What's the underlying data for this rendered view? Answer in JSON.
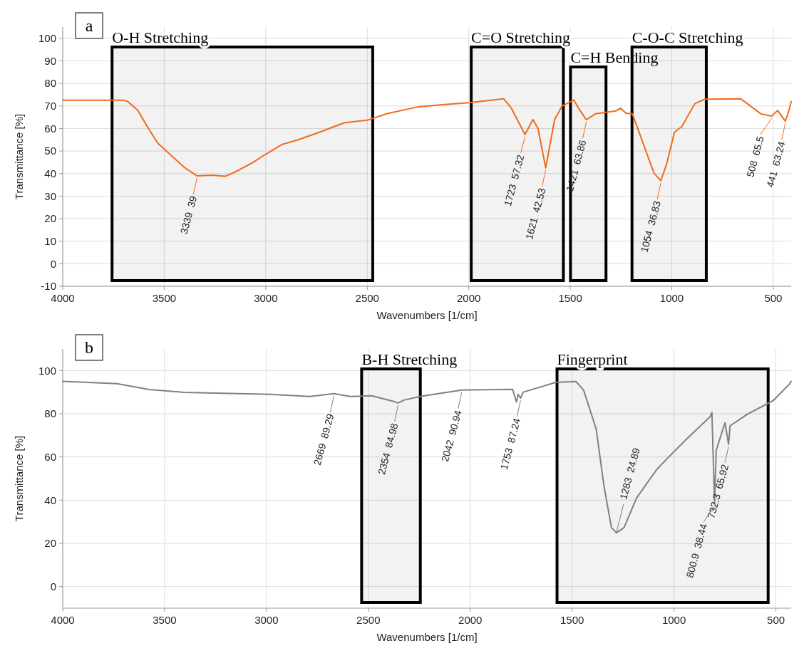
{
  "chart_data": [
    {
      "type": "line",
      "xlabel": "Wavenumbers [1/cm]",
      "ylabel": "Transmittance [%]",
      "xlim": [
        4000,
        412
      ],
      "ylim": [
        -10,
        105
      ],
      "xticks": [
        4000,
        3500,
        3000,
        2500,
        2000,
        1500,
        1000,
        500
      ],
      "yticks": [
        -10,
        0,
        10,
        20,
        30,
        40,
        50,
        60,
        70,
        80,
        90,
        100
      ],
      "grid": true,
      "line_style": "solid",
      "marker": "none",
      "series": [
        {
          "color": "#f26a1b",
          "x": [
            4000,
            3700,
            3680,
            3630,
            3585,
            3532,
            3465,
            3399,
            3339,
            3266,
            3199,
            3133,
            3066,
            3000,
            2920,
            2840,
            2734,
            2614,
            2495,
            2402,
            2255,
            2129,
            2000,
            1828,
            1790,
            1723,
            1684,
            1659,
            1621,
            1577,
            1540,
            1483,
            1452,
            1421,
            1376,
            1276,
            1251,
            1226,
            1194,
            1138,
            1088,
            1054,
            1025,
            987,
            950,
            887,
            837,
            661,
            561,
            508,
            479,
            441,
            423,
            412
          ],
          "values": [
            72.5,
            72.5,
            72,
            68,
            61.1,
            53.5,
            48,
            42.6,
            39,
            39.3,
            38.8,
            41.5,
            44.8,
            48.6,
            52.9,
            55,
            58.4,
            62.5,
            63.8,
            66.6,
            69.5,
            70.6,
            71.4,
            73.2,
            69,
            57.32,
            64,
            60,
            42.53,
            64,
            70,
            72.6,
            68,
            63.86,
            66.5,
            67.8,
            69,
            66.8,
            66.5,
            52.6,
            40.3,
            36.83,
            44.4,
            58.3,
            60.9,
            71,
            73,
            73.2,
            66.5,
            65.5,
            68,
            63.24,
            68,
            72
          ]
        }
      ],
      "bands": [
        {
          "axis": "x",
          "from": 3757,
          "to": 2473,
          "label": "O-H Stretching",
          "color": "#000000"
        },
        {
          "axis": "x",
          "from": 1988,
          "to": 1534,
          "label": "C=O Stretching",
          "color": "#000000"
        },
        {
          "axis": "x",
          "from": 1499,
          "to": 1324,
          "label": "C=H Bending",
          "color": "#000000"
        },
        {
          "axis": "x",
          "from": 1196,
          "to": 830,
          "label": "C-O-C Stretching",
          "color": "#000000"
        }
      ],
      "annotations": [
        "a",
        {
          "text": "3339  39",
          "x": 3339,
          "y": 39
        },
        {
          "text": "1723  57.32",
          "x": 1723,
          "y": 57.32
        },
        {
          "text": "1621  42.53",
          "x": 1621,
          "y": 42.53
        },
        {
          "text": "1421  63.86",
          "x": 1421,
          "y": 63.86
        },
        {
          "text": "1054  36.83",
          "x": 1054,
          "y": 36.83
        },
        {
          "text": "508  65.5",
          "x": 508,
          "y": 65.5
        },
        {
          "text": "441  63.24",
          "x": 441,
          "y": 63.24
        }
      ]
    },
    {
      "type": "line",
      "xlabel": "Wavenumbers [1/cm]",
      "ylabel": "Transmittance [%]",
      "xlim": [
        4000,
        425
      ],
      "ylim": [
        -10,
        110
      ],
      "xticks": [
        4000,
        3500,
        3000,
        2500,
        2000,
        1500,
        1000,
        500
      ],
      "yticks": [
        0,
        20,
        40,
        60,
        80,
        100
      ],
      "grid": true,
      "line_style": "solid",
      "marker": "none",
      "series": [
        {
          "color": "#808080",
          "x": [
            4000,
            3734,
            3576,
            3405,
            2984,
            2787,
            2669,
            2589,
            2484,
            2379,
            2354,
            2326,
            2247,
            2042,
            1792,
            1773,
            1765,
            1753,
            1740,
            1581,
            1481,
            1444,
            1382,
            1344,
            1307,
            1283,
            1245,
            1184,
            1084,
            1035,
            948,
            824,
            814,
            800.9,
            793,
            750,
            732.3,
            725,
            638,
            513,
            433,
            425
          ],
          "values": [
            95,
            93.9,
            91.2,
            89.9,
            89,
            88,
            89.29,
            88,
            88.3,
            85.8,
            84.98,
            86.3,
            88,
            90.94,
            91.3,
            85.4,
            89,
            87.24,
            90,
            94.5,
            94.9,
            91,
            73,
            46.7,
            27.3,
            24.89,
            27.3,
            41,
            54.3,
            59.1,
            67.4,
            78.5,
            80.6,
            38.44,
            63,
            75.8,
            65.92,
            74.4,
            79.9,
            86.1,
            93.8,
            95
          ]
        }
      ],
      "bands": [
        {
          "axis": "x",
          "from": 2533,
          "to": 2245,
          "label": "B-H Stretching",
          "color": "#000000"
        },
        {
          "axis": "x",
          "from": 1574,
          "to": 538,
          "label": "Fingerprint",
          "color": "#000000"
        }
      ],
      "annotations": [
        "b",
        {
          "text": "2669  89.29",
          "x": 2669,
          "y": 89.29
        },
        {
          "text": "2354  84.98",
          "x": 2354,
          "y": 84.98
        },
        {
          "text": "2042  90.94",
          "x": 2042,
          "y": 90.94
        },
        {
          "text": "1753  87.24",
          "x": 1753,
          "y": 87.24
        },
        {
          "text": "1283  24.89",
          "x": 1283,
          "y": 24.89
        },
        {
          "text": "800.9  38.44",
          "x": 800.9,
          "y": 38.44
        },
        {
          "text": "732.3  65.92",
          "x": 732.3,
          "y": 65.92
        }
      ]
    }
  ]
}
